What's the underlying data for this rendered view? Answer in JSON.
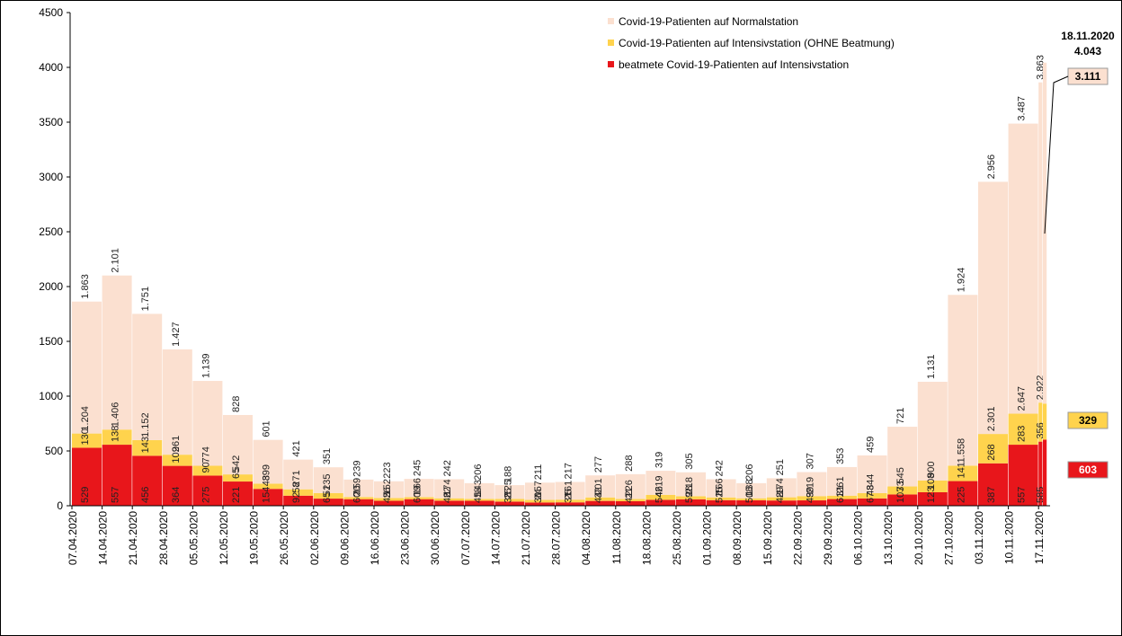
{
  "chart_data": {
    "type": "bar",
    "stacked": true,
    "categories": [
      "07.04.2020",
      "14.04.2020",
      "21.04.2020",
      "28.04.2020",
      "05.05.2020",
      "12.05.2020",
      "19.05.2020",
      "26.05.2020",
      "02.06.2020",
      "09.06.2020",
      "16.06.2020",
      "23.06.2020",
      "30.06.2020",
      "07.07.2020",
      "14.07.2020",
      "21.07.2020",
      "28.07.2020",
      "04.08.2020",
      "11.08.2020",
      "18.08.2020",
      "25.08.2020",
      "01.09.2020",
      "08.09.2020",
      "15.09.2020",
      "22.09.2020",
      "29.09.2020",
      "06.10.2020",
      "13.10.2020",
      "20.10.2020",
      "27.10.2020",
      "03.11.2020",
      "10.11.2020",
      "17.11.2020"
    ],
    "series": [
      {
        "name": "beatmete Covid-19-Patienten auf Intensivstation",
        "color": "#e8161b",
        "values": [
          529,
          557,
          456,
          364,
          275,
          221,
          154,
          92,
          65,
          60,
          45,
          60,
          46,
          45,
          38,
          30,
          31,
          44,
          41,
          54,
          59,
          51,
          50,
          48,
          49,
          61,
          67,
          103,
          123,
          225,
          387,
          557,
          585
        ]
      },
      {
        "name": "Covid-19-Patienten auf Intensivstation (OHNE Beatmung)",
        "color": "#ffd34d",
        "values": [
          130,
          138,
          143,
          102,
          90,
          65,
          48,
          58,
          51,
          20,
          26,
          19,
          22,
          18,
          25,
          24,
          25,
          32,
          21,
          46,
          28,
          25,
          18,
          29,
          39,
          31,
          48,
          73,
          108,
          141,
          268,
          283,
          356
        ]
      },
      {
        "name": "Covid-19-Patienten auf Normalstation",
        "color": "#fbe0d0",
        "values": [
          1204,
          1406,
          1152,
          961,
          774,
          542,
          399,
          271,
          235,
          159,
          152,
          166,
          174,
          143,
          125,
          157,
          161,
          201,
          226,
          219,
          218,
          166,
          138,
          174,
          219,
          261,
          344,
          545,
          900,
          1558,
          2301,
          2647,
          2922
        ],
        "value_labels": [
          "1.204",
          "1.406",
          "1.152",
          "961",
          "774",
          "542",
          "399",
          "271",
          "235",
          "159",
          "152",
          "166",
          "174",
          "143",
          "125",
          "157",
          "161",
          "201",
          "226",
          "219",
          "218",
          "166",
          "138",
          "174",
          "219",
          "261",
          "344",
          "545",
          "900",
          "1.558",
          "2.301",
          "2.647",
          "2.922"
        ]
      }
    ],
    "totals": {
      "values": [
        1863,
        2101,
        1751,
        1427,
        1139,
        828,
        601,
        421,
        351,
        239,
        223,
        245,
        242,
        206,
        188,
        211,
        217,
        277,
        288,
        319,
        305,
        242,
        206,
        251,
        307,
        353,
        459,
        721,
        1131,
        1924,
        2956,
        3487,
        3863
      ],
      "value_labels": [
        "1.863",
        "2.101",
        "1.751",
        "1.427",
        "1.139",
        "828",
        "601",
        "421",
        "351",
        "239",
        "223",
        "245",
        "242",
        "206",
        "188",
        "211",
        "217",
        "277",
        "288",
        "319",
        "305",
        "242",
        "206",
        "251",
        "307",
        "353",
        "459",
        "721",
        "1.131",
        "1.924",
        "2.956",
        "3.487",
        "3.863"
      ]
    },
    "latest": {
      "date": "18.11.2020",
      "values": [
        603,
        329,
        3111
      ],
      "value_labels": [
        "603",
        "329",
        "3.111"
      ],
      "total": 4043,
      "total_label": "4.043"
    },
    "ylim": [
      0,
      4500
    ],
    "yticks": [
      0,
      500,
      1000,
      1500,
      2000,
      2500,
      3000,
      3500,
      4000,
      4500
    ],
    "legend": "top-right"
  }
}
